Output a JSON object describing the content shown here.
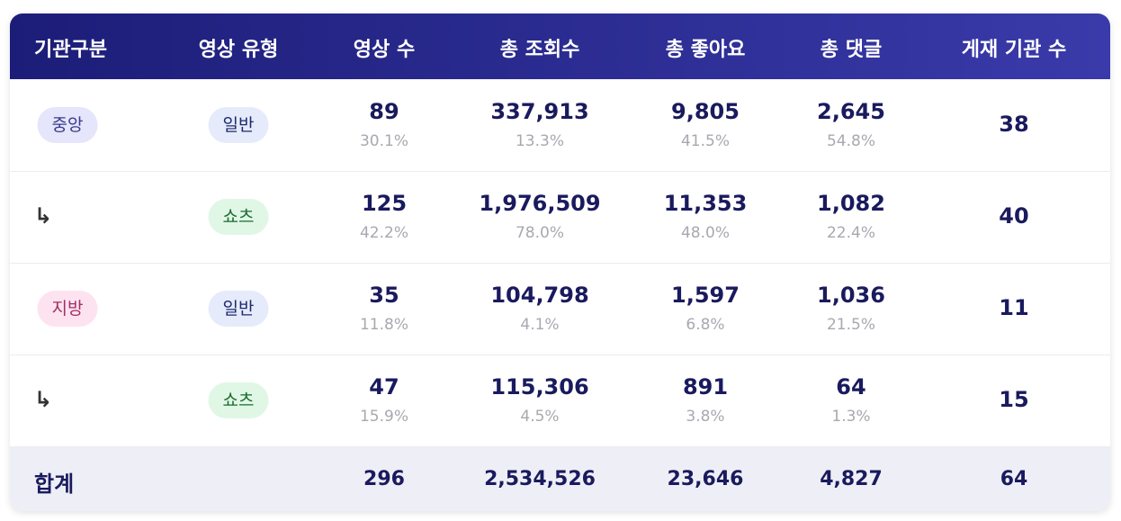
{
  "header": [
    "기관구분",
    "영상 유형",
    "영상 수",
    "총 조회수",
    "총 좋아요",
    "총 댓글",
    "게재 기관 수"
  ],
  "rows": [
    {
      "org": "중앙",
      "type": "일반",
      "videos": {
        "count": "89",
        "share": "30.1%"
      },
      "views": {
        "count": "337,913",
        "share": "13.3%"
      },
      "likes": {
        "count": "9,805",
        "share": "41.5%"
      },
      "comments": {
        "count": "2,645",
        "share": "54.8%"
      },
      "agencies": "38"
    },
    {
      "org": "↳",
      "type": "쇼츠",
      "videos": {
        "count": "125",
        "share": "42.2%"
      },
      "views": {
        "count": "1,976,509",
        "share": "78.0%"
      },
      "likes": {
        "count": "11,353",
        "share": "48.0%"
      },
      "comments": {
        "count": "1,082",
        "share": "22.4%"
      },
      "agencies": "40"
    },
    {
      "org": "지방",
      "type": "일반",
      "videos": {
        "count": "35",
        "share": "11.8%"
      },
      "views": {
        "count": "104,798",
        "share": "4.1%"
      },
      "likes": {
        "count": "1,597",
        "share": "6.8%"
      },
      "comments": {
        "count": "1,036",
        "share": "21.5%"
      },
      "agencies": "11"
    },
    {
      "org": "↳",
      "type": "쇼츠",
      "videos": {
        "count": "47",
        "share": "15.9%"
      },
      "views": {
        "count": "115,306",
        "share": "4.5%"
      },
      "likes": {
        "count": "891",
        "share": "3.8%"
      },
      "comments": {
        "count": "64",
        "share": "1.3%"
      },
      "agencies": "15"
    }
  ],
  "total": {
    "label": "합계",
    "videos": "296",
    "views": "2,534,526",
    "likes": "23,646",
    "comments": "4,827",
    "agencies": "64"
  }
}
